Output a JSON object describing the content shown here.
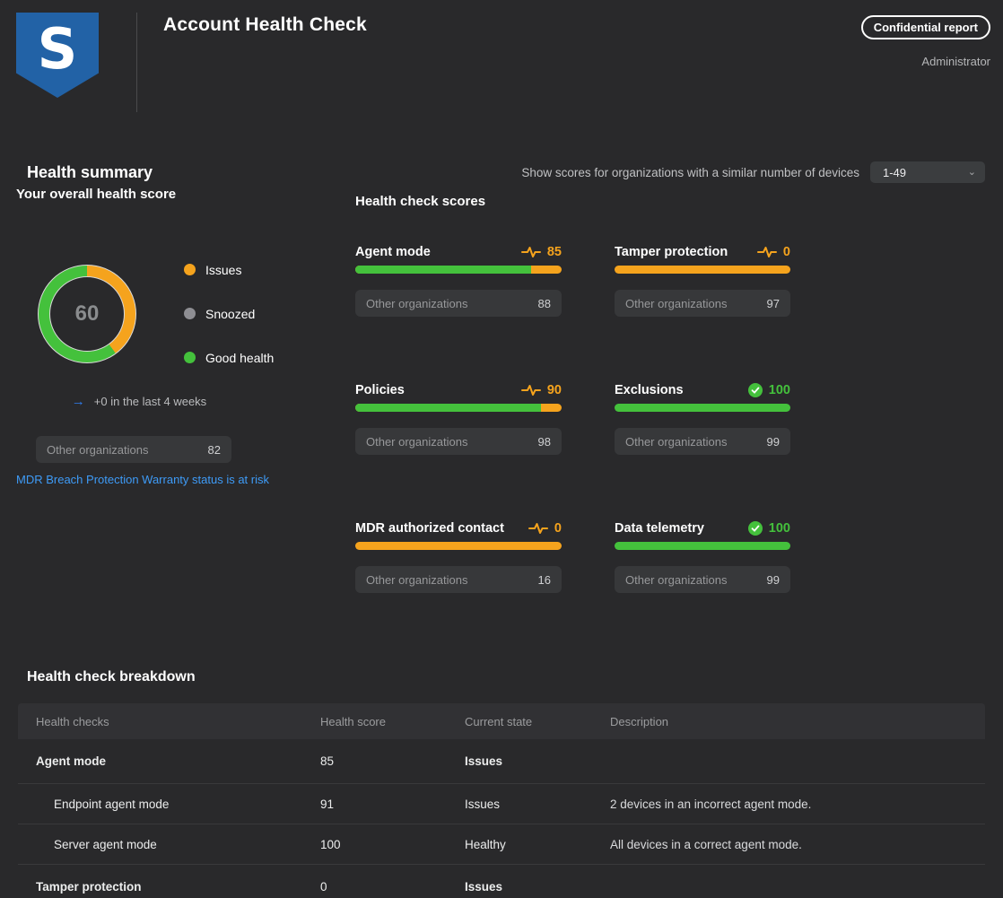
{
  "header": {
    "title": "Account Health Check",
    "badge": "Confidential report",
    "user_role": "Administrator",
    "logo_letter": "S"
  },
  "filter": {
    "label": "Show scores for organizations with a similar number of devices",
    "value": "1-49"
  },
  "summary": {
    "heading": "Health summary",
    "subheading": "Your overall health score",
    "trend_text": "+0 in the last 4 weeks",
    "comparison_label": "Other organizations",
    "comparison_value": "82",
    "warning_link": "MDR Breach Protection Warranty status is at risk"
  },
  "chart_data": {
    "type": "pie",
    "title": "Your overall health score",
    "center_value": "60",
    "segments": [
      {
        "label": "Issues",
        "value": 40,
        "color": "#F5A31D"
      },
      {
        "label": "Snoozed",
        "value": 0,
        "color": "#8E8E93"
      },
      {
        "label": "Good health",
        "value": 60,
        "color": "#44C13C"
      }
    ]
  },
  "scores": {
    "heading": "Health check scores",
    "comparison_label": "Other organizations",
    "cards": [
      {
        "name": "Agent mode",
        "score": 85,
        "status": "issues",
        "comparison": 88
      },
      {
        "name": "Tamper protection",
        "score": 0,
        "status": "issues",
        "comparison": 97
      },
      {
        "name": "Policies",
        "score": 90,
        "status": "issues",
        "comparison": 98
      },
      {
        "name": "Exclusions",
        "score": 100,
        "status": "good",
        "comparison": 99
      },
      {
        "name": "MDR authorized contact",
        "score": 0,
        "status": "issues",
        "comparison": 16
      },
      {
        "name": "Data telemetry",
        "score": 100,
        "status": "good",
        "comparison": 99
      }
    ]
  },
  "breakdown": {
    "heading": "Health check breakdown",
    "columns": [
      "Health checks",
      "Health score",
      "Current state",
      "Description"
    ],
    "rows": [
      {
        "name": "Agent mode",
        "score": "85",
        "state": "Issues",
        "description": "",
        "level": 0
      },
      {
        "name": "Endpoint agent mode",
        "score": "91",
        "state": "Issues",
        "description": "2 devices in an incorrect agent mode.",
        "level": 1
      },
      {
        "name": "Server agent mode",
        "score": "100",
        "state": "Healthy",
        "description": "All devices in a correct agent mode.",
        "level": 1
      },
      {
        "name": "Tamper protection",
        "score": "0",
        "state": "Issues",
        "description": "",
        "level": 0
      }
    ]
  },
  "colors": {
    "accent_orange": "#F5A31D",
    "accent_green": "#44C13C",
    "link_blue": "#3E9BF7",
    "arrow_blue": "#2F7FF2"
  }
}
